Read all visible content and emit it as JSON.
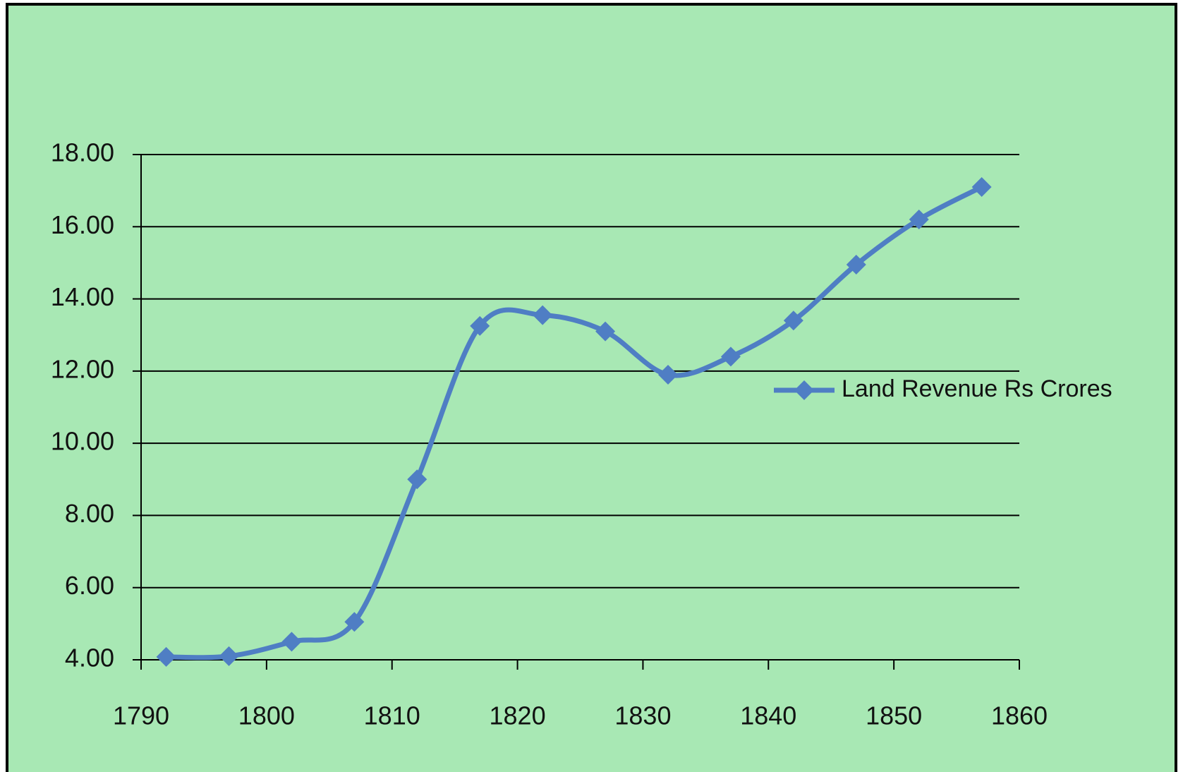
{
  "chart_data": {
    "type": "line",
    "series": [
      {
        "name": "Land Revenue Rs Crores",
        "color": "#4f7ec4",
        "values": [
          4.08,
          4.1,
          4.5,
          5.05,
          9.0,
          13.25,
          13.55,
          13.1,
          11.9,
          12.4,
          13.4,
          14.95,
          16.2,
          17.1
        ]
      }
    ],
    "x": [
      1792,
      1797,
      1802,
      1807,
      1812,
      1817,
      1822,
      1827,
      1832,
      1837,
      1842,
      1847,
      1852,
      1857
    ],
    "xlim": [
      1790,
      1860
    ],
    "xticks": [
      1790,
      1800,
      1810,
      1820,
      1830,
      1840,
      1850,
      1860
    ],
    "ylim": [
      4,
      18
    ],
    "yticks": [
      {
        "value": 4,
        "label": "4.00"
      },
      {
        "value": 6,
        "label": "6.00"
      },
      {
        "value": 8,
        "label": "8.00"
      },
      {
        "value": 10,
        "label": "10.00"
      },
      {
        "value": 12,
        "label": "12.00"
      },
      {
        "value": 14,
        "label": "14.00"
      },
      {
        "value": 16,
        "label": "16.00"
      },
      {
        "value": 18,
        "label": "18.00"
      }
    ],
    "grid": true,
    "smooth": true,
    "legend": "right"
  }
}
